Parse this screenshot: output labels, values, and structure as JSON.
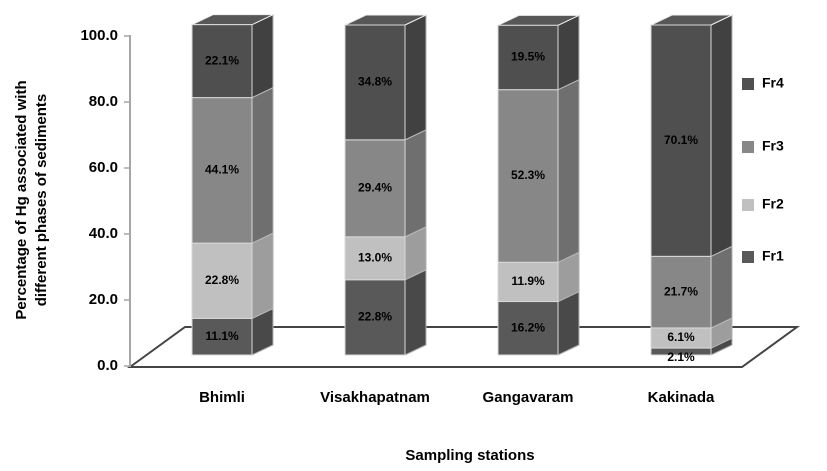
{
  "chart_data": {
    "type": "stacked-bar-3d",
    "ylabel": [
      "Percentage of Hg associated with",
      "different phases of sediments"
    ],
    "xlabel": "Sampling stations",
    "categories": [
      "Bhimli",
      "Visakhapatnam",
      "Gangavaram",
      "Kakinada"
    ],
    "series": [
      {
        "name": "Fr1",
        "color": "#595959",
        "values": [
          11.1,
          22.8,
          16.2,
          2.1
        ],
        "value_labels": [
          "11.1%",
          "22.8%",
          "16.2%",
          "2.1%"
        ]
      },
      {
        "name": "Fr2",
        "color": "#c0c0c0",
        "values": [
          22.8,
          13.0,
          11.9,
          6.1
        ],
        "value_labels": [
          "22.8%",
          "13.0%",
          "11.9%",
          "6.1%"
        ]
      },
      {
        "name": "Fr3",
        "color": "#878787",
        "values": [
          44.1,
          29.4,
          52.3,
          21.7
        ],
        "value_labels": [
          "44.1%",
          "29.4%",
          "52.3%",
          "21.7%"
        ]
      },
      {
        "name": "Fr4",
        "color": "#4f4f4f",
        "values": [
          22.1,
          34.8,
          19.5,
          70.1
        ],
        "value_labels": [
          "22.1%",
          "34.8%",
          "19.5%",
          "70.1%"
        ]
      }
    ],
    "ylim": [
      0,
      100
    ],
    "yticks": [
      {
        "value": 0,
        "label": "0.0"
      },
      {
        "value": 20,
        "label": "20.0"
      },
      {
        "value": 40,
        "label": "40.0"
      },
      {
        "value": 60,
        "label": "60.0"
      },
      {
        "value": 80,
        "label": "80.0"
      },
      {
        "value": 100,
        "label": "100.0"
      }
    ],
    "legend": "right"
  }
}
